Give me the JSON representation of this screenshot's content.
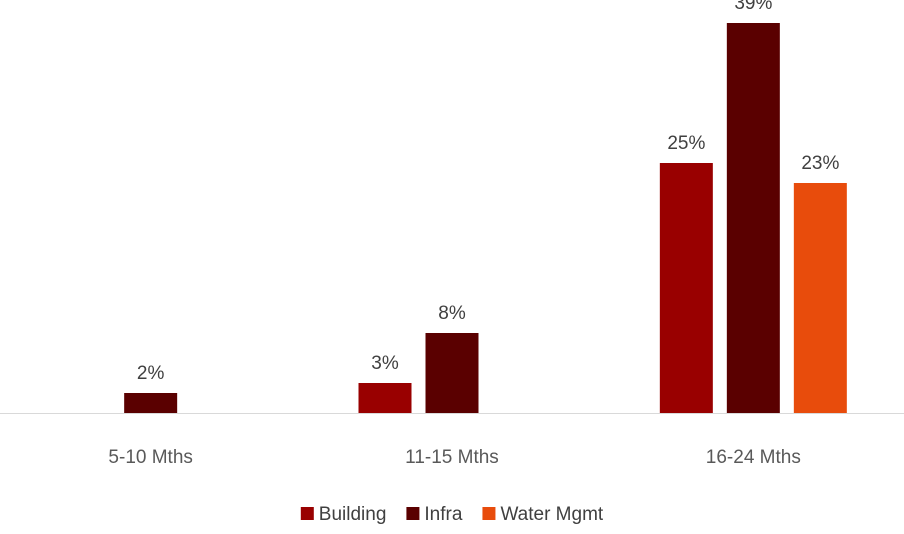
{
  "chart_data": {
    "type": "bar",
    "categories": [
      "5-10 Mths",
      "11-15 Mths",
      "16-24 Mths"
    ],
    "series": [
      {
        "name": "Building",
        "color": "#990000",
        "values": [
          null,
          3,
          25
        ]
      },
      {
        "name": "Infra",
        "color": "#5a0000",
        "values": [
          2,
          8,
          39
        ]
      },
      {
        "name": "Water Mgmt",
        "color": "#e84c0c",
        "values": [
          null,
          null,
          23
        ]
      }
    ],
    "value_suffix": "%",
    "ylim": [
      0,
      40
    ],
    "grid": false,
    "legend_position": "bottom",
    "axis_line_color": "#d9d9d9"
  }
}
